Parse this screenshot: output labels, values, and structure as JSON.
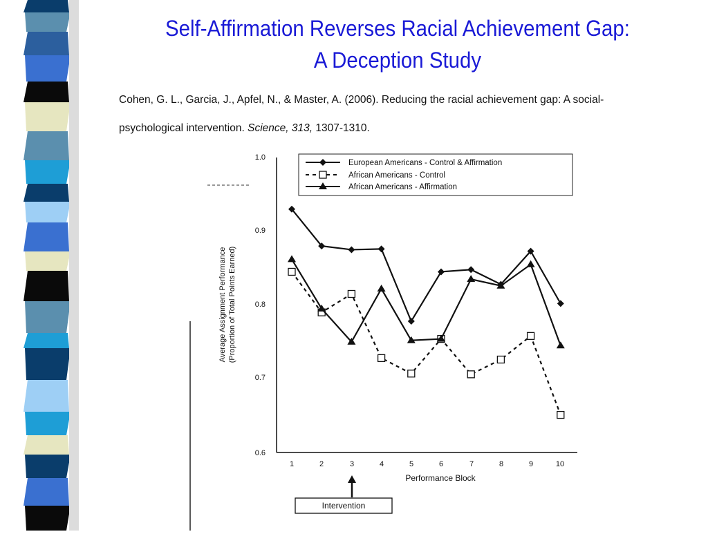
{
  "slide": {
    "title_line1": "Self-Affirmation Reverses Racial Achievement Gap:",
    "title_line2": "A Deception Study",
    "citation": {
      "part1": "Cohen, G. L., Garcia, J., Apfel, N., & Master, A. (2006). Reducing the racial achievement gap: A social-psychological intervention. ",
      "journal": "Science, 313,",
      "pages": " 1307-1310."
    },
    "strip_colors": [
      "#0a3d6b",
      "#5b8fae",
      "#2c5f9e",
      "#3a70d0",
      "#0a0a0a",
      "#e6e6c0",
      "#5b8fae",
      "#1e9ed6",
      "#0a3d6b",
      "#9ecff5",
      "#3a70d0",
      "#e6e6c0",
      "#0a0a0a",
      "#5b8fae",
      "#1e9ed6",
      "#0a3d6b",
      "#9ecff5",
      "#1e9ed6",
      "#e6e6c0",
      "#0a3d6b",
      "#3a70d0",
      "#0a0a0a"
    ],
    "strip_band_heights": [
      18,
      28,
      34,
      38,
      30,
      42,
      42,
      34,
      26,
      30,
      42,
      28,
      44,
      46,
      22,
      46,
      46,
      34,
      28,
      34,
      40,
      36
    ]
  },
  "chart_data": {
    "type": "line",
    "categories": [
      "1",
      "2",
      "3",
      "4",
      "5",
      "6",
      "7",
      "8",
      "9",
      "10"
    ],
    "x": [
      1,
      2,
      3,
      4,
      5,
      6,
      7,
      8,
      9,
      10
    ],
    "series": [
      {
        "name": "European Americans - Control & Affirmation",
        "marker": "diamond",
        "line_style": "solid",
        "values": [
          0.93,
          0.88,
          0.875,
          0.876,
          0.778,
          0.845,
          0.848,
          0.828,
          0.873,
          0.802
        ]
      },
      {
        "name": "African Americans - Control",
        "marker": "square-open",
        "line_style": "dashed",
        "values": [
          0.845,
          0.79,
          0.815,
          0.728,
          0.707,
          0.754,
          0.706,
          0.726,
          0.758,
          0.651
        ]
      },
      {
        "name": "African Americans - Affirmation",
        "marker": "triangle",
        "line_style": "solid",
        "values": [
          0.862,
          0.795,
          0.75,
          0.822,
          0.752,
          0.754,
          0.835,
          0.826,
          0.855,
          0.745
        ]
      }
    ],
    "ylim": [
      0.6,
      1.0
    ],
    "yticks": [
      "0.6",
      "0.7",
      "0.8",
      "0.9",
      "1.0"
    ],
    "xlabel": "Performance Block",
    "ylabel_line1": "Average Assignment Performance",
    "ylabel_line2": "(Proportion of Total Points Earned)",
    "annotation": {
      "text": "Intervention",
      "at_x": 3
    },
    "legend_position": "top",
    "grid": false
  }
}
